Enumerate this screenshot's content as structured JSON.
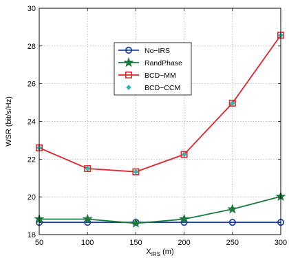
{
  "chart_data": {
    "type": "line",
    "xlabel": {
      "main": "X",
      "sub": "IRS",
      "unit": " (m)"
    },
    "ylabel": "WSR (bit/s/Hz)",
    "xlim": [
      50,
      300
    ],
    "ylim": [
      18,
      30
    ],
    "xticks": [
      50,
      100,
      150,
      200,
      250,
      300
    ],
    "yticks": [
      18,
      20,
      22,
      24,
      26,
      28,
      30
    ],
    "grid": true,
    "legend_position": "upper-center",
    "x": [
      50,
      100,
      150,
      200,
      250,
      300
    ],
    "series": [
      {
        "name": "No−IRS",
        "color": "#1f3fa6",
        "marker": "circle",
        "values": [
          18.65,
          18.65,
          18.65,
          18.65,
          18.65,
          18.65
        ]
      },
      {
        "name": "RandPhase",
        "color": "#1a7a3c",
        "marker": "star",
        "values": [
          18.82,
          18.82,
          18.6,
          18.82,
          19.35,
          20.02
        ]
      },
      {
        "name": "BCD−MM",
        "color": "#e0242a",
        "marker": "square",
        "values": [
          22.6,
          21.5,
          21.33,
          22.25,
          24.97,
          28.57
        ]
      },
      {
        "name": "BCD−CCM",
        "color": "#2fb7b0",
        "marker": "diamond",
        "values": [
          22.6,
          21.5,
          21.33,
          22.25,
          24.97,
          28.57
        ]
      }
    ]
  }
}
